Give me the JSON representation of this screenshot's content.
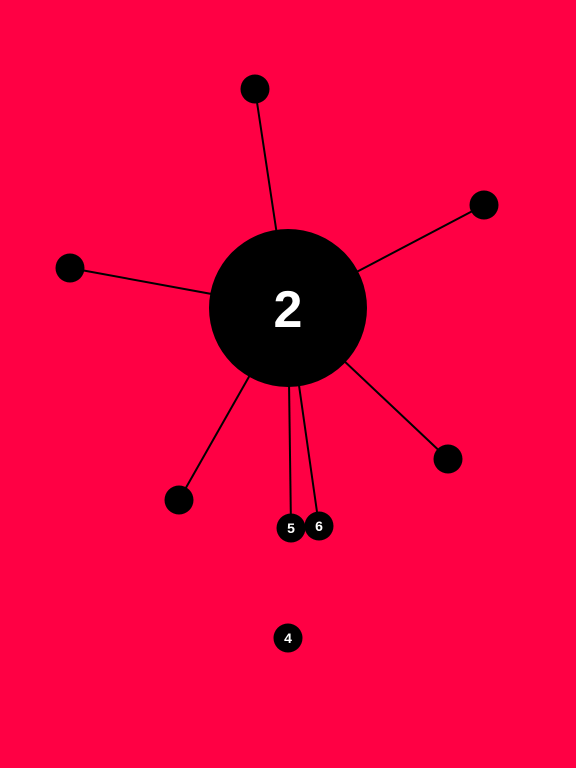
{
  "game": {
    "level_number": "2",
    "background_color": "#ff0044",
    "core_color": "#000000",
    "pin_color": "#000000",
    "line_color": "#000000",
    "text_color": "#ffffff"
  },
  "stuck_pins": [
    {
      "label": ""
    },
    {
      "label": ""
    },
    {
      "label": ""
    },
    {
      "label": ""
    },
    {
      "label": ""
    },
    {
      "label": "5"
    },
    {
      "label": "6"
    }
  ],
  "queued_pins": [
    {
      "label": "4"
    }
  ]
}
